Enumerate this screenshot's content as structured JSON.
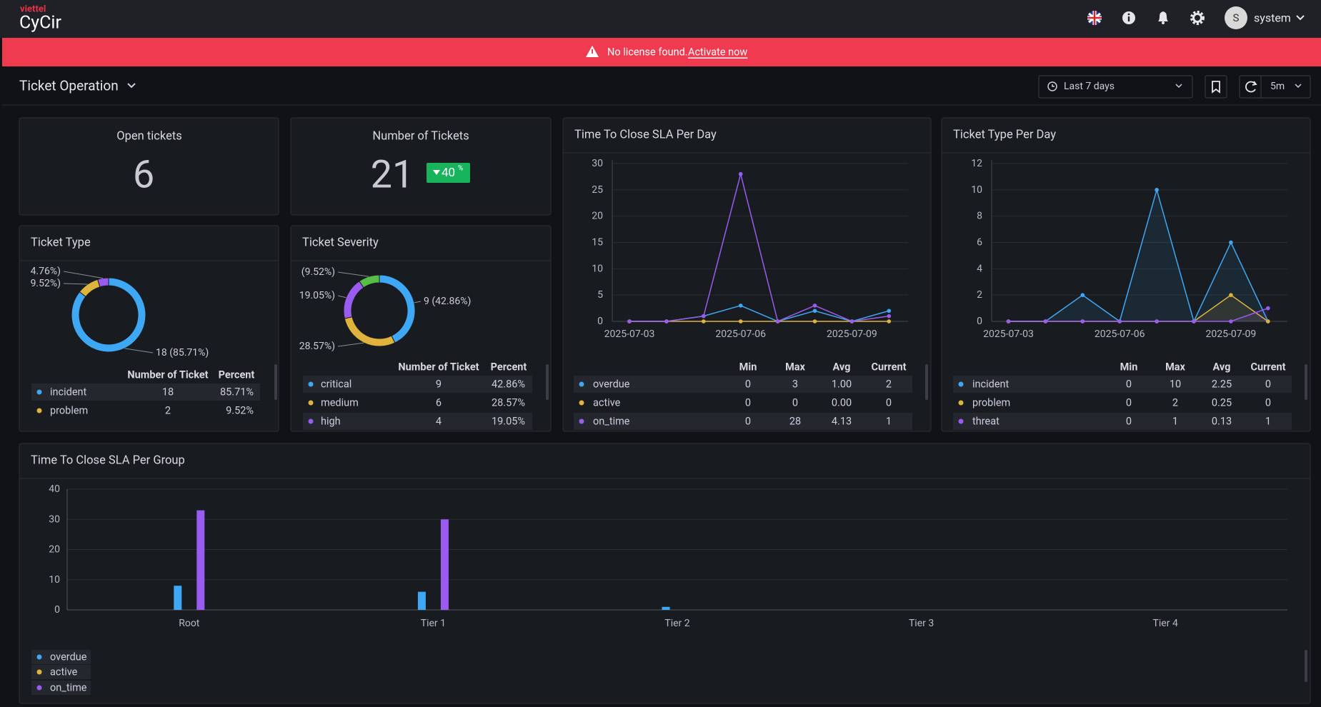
{
  "header": {
    "brand_top": "viettel",
    "brand": "CyCir",
    "user_initial": "S",
    "user": "system"
  },
  "banner": {
    "message": "No license found.",
    "link": "Activate now"
  },
  "toolbar": {
    "dashboard": "Ticket Operation",
    "time_range": "Last 7 days",
    "refresh": "5m"
  },
  "stats": [
    {
      "title": "Open tickets",
      "value": 6
    },
    {
      "title": "Number of Tickets",
      "value": 21,
      "change": 40,
      "change_unit": "%"
    }
  ],
  "chart_data": [
    {
      "type": "pie",
      "title": "Ticket Type",
      "donut": true,
      "categories": [
        "incident",
        "problem",
        null
      ],
      "values": [
        18,
        2,
        1
      ],
      "value_labels": [
        "18 (85.71%)",
        "9.52%)",
        "4.76%)"
      ],
      "colors": [
        "#3ea8f4",
        "#e0b43c",
        "#9a5cf0"
      ],
      "table_headers": [
        "Number of Ticket",
        "Percent"
      ],
      "percent_labels": [
        "85.71%",
        "9.52%",
        null
      ]
    },
    {
      "type": "pie",
      "title": "Ticket Severity",
      "donut": true,
      "categories": [
        "critical",
        "medium",
        "high",
        null
      ],
      "values": [
        9,
        6,
        4,
        2
      ],
      "value_labels": [
        "9 (42.86%)",
        "28.57%)",
        "19.05%)",
        "(9.52%)"
      ],
      "colors": [
        "#3ea8f4",
        "#e0b43c",
        "#9a5cf0",
        "#56bd45"
      ],
      "table_headers": [
        "Number of Ticket",
        "Percent"
      ],
      "percent_labels": [
        "42.86%",
        "28.57%",
        "19.05%",
        null
      ]
    },
    {
      "type": "line",
      "title": "Time To Close SLA Per Day",
      "x": [
        "2025-07-03",
        "2025-07-04",
        "2025-07-05",
        "2025-07-06",
        "2025-07-07",
        "2025-07-08",
        "2025-07-09",
        "2025-07-10"
      ],
      "xticks": [
        "2025-07-03",
        "2025-07-06",
        "2025-07-09"
      ],
      "ylim": [
        0,
        30
      ],
      "yticks": [
        0,
        5,
        10,
        15,
        20,
        25,
        30
      ],
      "grid": true,
      "area": false,
      "legend_headers": [
        "Min",
        "Max",
        "Avg",
        "Current"
      ],
      "series": [
        {
          "name": "overdue",
          "color": "#3ea8f4",
          "values": [
            0,
            0,
            1,
            3,
            0,
            2,
            0,
            2
          ],
          "min": 0,
          "max": 3,
          "avg": {
            "value": 1,
            "label": "1.00"
          },
          "current": 2
        },
        {
          "name": "active",
          "color": "#e0b43c",
          "values": [
            0,
            0,
            0,
            0,
            0,
            0,
            0,
            0
          ],
          "min": 0,
          "max": 0,
          "avg": {
            "value": 0,
            "label": "0.00"
          },
          "current": 0
        },
        {
          "name": "on_time",
          "color": "#9a5cf0",
          "values": [
            0,
            0,
            1,
            28,
            0,
            3,
            0,
            1
          ],
          "min": 0,
          "max": 28,
          "avg": 4.13,
          "current": 1
        }
      ]
    },
    {
      "type": "line",
      "title": "Ticket Type Per Day",
      "x": [
        "2025-07-03",
        "2025-07-04",
        "2025-07-05",
        "2025-07-06",
        "2025-07-07",
        "2025-07-08",
        "2025-07-09",
        "2025-07-10"
      ],
      "xticks": [
        "2025-07-03",
        "2025-07-06",
        "2025-07-09"
      ],
      "ylim": [
        0,
        12
      ],
      "yticks": [
        0,
        2,
        4,
        6,
        8,
        10,
        12
      ],
      "grid": true,
      "area": true,
      "legend_headers": [
        "Min",
        "Max",
        "Avg",
        "Current"
      ],
      "series": [
        {
          "name": "incident",
          "color": "#3ea8f4",
          "values": [
            0,
            0,
            2,
            0,
            10,
            0,
            6,
            0
          ],
          "min": 0,
          "max": 10,
          "avg": 2.25,
          "current": 0
        },
        {
          "name": "problem",
          "color": "#e0b43c",
          "values": [
            0,
            0,
            0,
            0,
            0,
            0,
            2,
            0
          ],
          "min": 0,
          "max": 2,
          "avg": 0.25,
          "current": 0
        },
        {
          "name": "threat",
          "color": "#9a5cf0",
          "values": [
            0,
            0,
            0,
            0,
            0,
            0,
            0,
            1
          ],
          "min": 0,
          "max": 1,
          "avg": 0.13,
          "current": 1
        }
      ]
    },
    {
      "type": "bar",
      "title": "Time To Close SLA Per Group",
      "categories": [
        "Root",
        "Tier 1",
        "Tier 2",
        "Tier 3",
        "Tier 4"
      ],
      "ylim": [
        0,
        40
      ],
      "yticks": [
        0,
        10,
        20,
        30,
        40
      ],
      "grid": true,
      "series": [
        {
          "name": "overdue",
          "color": "#3ea8f4",
          "values": [
            8,
            6,
            1,
            0,
            0
          ]
        },
        {
          "name": "active",
          "color": "#e0b43c",
          "values": [
            0,
            0,
            0,
            0,
            0
          ]
        },
        {
          "name": "on_time",
          "color": "#9a5cf0",
          "values": [
            33,
            30,
            0,
            0,
            0
          ]
        }
      ]
    }
  ]
}
